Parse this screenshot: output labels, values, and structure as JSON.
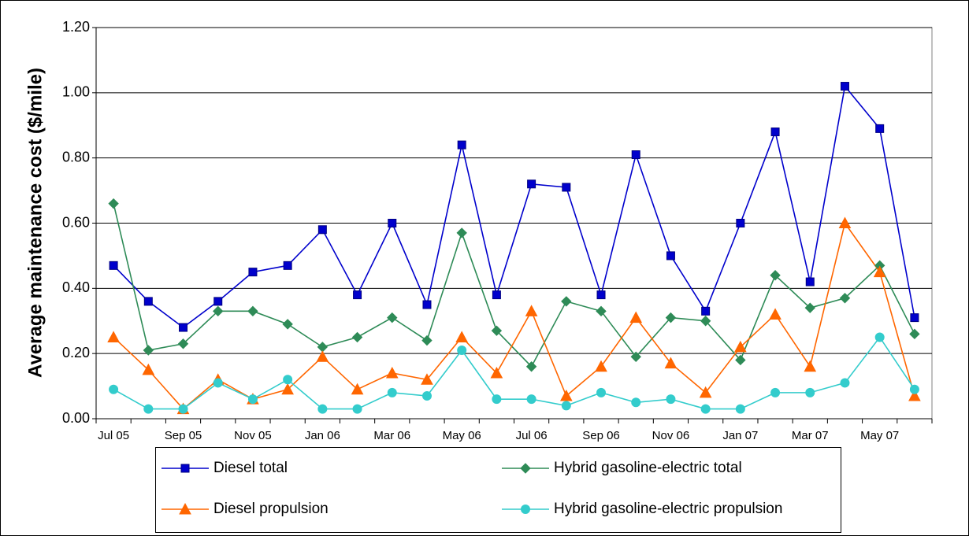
{
  "chart_data": {
    "type": "line",
    "y_label": "Average maintenance cost ($/mile)",
    "categories": [
      "Jul 05",
      null,
      "Sep 05",
      null,
      "Nov 05",
      null,
      "Jan 06",
      null,
      "Mar 06",
      null,
      "May 06",
      null,
      "Jul 06",
      null,
      "Sep 06",
      null,
      "Nov 06",
      null,
      "Jan 07",
      null,
      "Mar 07",
      null,
      "May 07",
      null
    ],
    "ylim": [
      0,
      1.2
    ],
    "yticks": [
      {
        "value": 0,
        "label": "0.00"
      },
      {
        "value": 0.2,
        "label": "0.20"
      },
      {
        "value": 0.4,
        "label": "0.40"
      },
      {
        "value": 0.6,
        "label": "0.60"
      },
      {
        "value": 0.8,
        "label": "0.80"
      },
      {
        "value": 1.0,
        "label": "1.00"
      },
      {
        "value": 1.2,
        "label": "1.20"
      }
    ],
    "grid": true,
    "legend": "bottom",
    "series": [
      {
        "name": "Diesel total",
        "color": "#0000cc",
        "marker": "square",
        "values": [
          0.47,
          0.36,
          0.28,
          0.36,
          0.45,
          0.47,
          0.58,
          0.38,
          0.6,
          0.35,
          0.84,
          0.38,
          0.72,
          0.71,
          0.38,
          0.81,
          0.5,
          0.33,
          0.6,
          0.88,
          0.42,
          1.02,
          0.89,
          0.31
        ]
      },
      {
        "name": "Hybrid gasoline-electric total",
        "color": "#2e8b57",
        "marker": "diamond",
        "values": [
          0.66,
          0.21,
          0.23,
          0.33,
          0.33,
          0.29,
          0.22,
          0.25,
          0.31,
          0.24,
          0.57,
          0.27,
          0.16,
          0.36,
          0.33,
          0.19,
          0.31,
          0.3,
          0.18,
          0.44,
          0.34,
          0.37,
          0.47,
          0.26
        ]
      },
      {
        "name": "Diesel propulsion",
        "color": "#ff6600",
        "marker": "triangle",
        "values": [
          0.25,
          0.15,
          0.03,
          0.12,
          0.06,
          0.09,
          0.19,
          0.09,
          0.14,
          0.12,
          0.25,
          0.14,
          0.33,
          0.07,
          0.16,
          0.31,
          0.17,
          0.08,
          0.22,
          0.32,
          0.16,
          0.6,
          0.45,
          0.07
        ]
      },
      {
        "name": "Hybrid gasoline-electric propulsion",
        "color": "#33cccc",
        "marker": "circle",
        "values": [
          0.09,
          0.03,
          0.03,
          0.11,
          0.06,
          0.12,
          0.03,
          0.03,
          0.08,
          0.07,
          0.21,
          0.06,
          0.06,
          0.04,
          0.08,
          0.05,
          0.06,
          0.03,
          0.03,
          0.08,
          0.08,
          0.11,
          0.25,
          0.09
        ]
      }
    ]
  }
}
